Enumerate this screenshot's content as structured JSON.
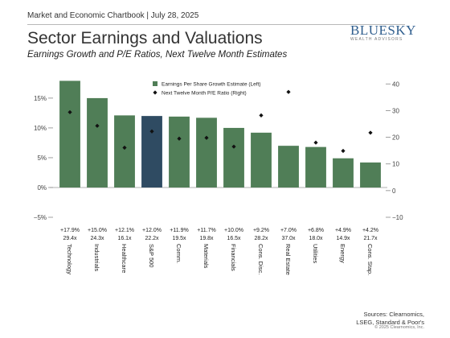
{
  "header": {
    "text": "Market and Economic Chartbook | July 28, 2025",
    "logo_main": "BLUESKY",
    "logo_sub": "WEALTH ADVISORS"
  },
  "title": "Sector Earnings and Valuations",
  "subtitle": "Earnings Growth and P/E Ratios, Next Twelve Month Estimates",
  "footer": {
    "sources_line1": "Sources: Clearnomics,",
    "sources_line2": "LSEG, Standard & Poor's",
    "copyright": "© 2025 Clearnomics, Inc."
  },
  "chart_data": {
    "type": "bar",
    "categories": [
      "Technology",
      "Industrials",
      "Healthcare",
      "S&P 500",
      "Comm.",
      "Materials",
      "Financials",
      "Cons. Disc.",
      "Real Estate",
      "Utilities",
      "Energy",
      "Cons. Stap."
    ],
    "series": [
      {
        "name": "Earnings Per Share Growth Estimate (Left)",
        "axis": "left",
        "type": "bar",
        "values": [
          17.9,
          15.0,
          12.1,
          12.0,
          11.9,
          11.7,
          10.0,
          9.2,
          7.0,
          6.8,
          4.9,
          4.2
        ],
        "labels": [
          "+17.9%",
          "+15.0%",
          "+12.1%",
          "+12.0%",
          "+11.9%",
          "+11.7%",
          "+10.0%",
          "+9.2%",
          "+7.0%",
          "+6.8%",
          "+4.9%",
          "+4.2%"
        ]
      },
      {
        "name": "Next Twelve Month P/E Ratio (Right)",
        "axis": "right",
        "type": "scatter",
        "values": [
          29.4,
          24.3,
          16.1,
          22.2,
          19.5,
          19.8,
          16.5,
          28.2,
          37.0,
          18.0,
          14.9,
          21.7
        ],
        "labels": [
          "29.4x",
          "24.3x",
          "16.1x",
          "22.2x",
          "19.5x",
          "19.8x",
          "16.5x",
          "28.2x",
          "37.0x",
          "18.0x",
          "14.9x",
          "21.7x"
        ]
      }
    ],
    "highlight_category": "S&P 500",
    "left_axis": {
      "ylim": [
        -5,
        18.5
      ],
      "ticks": [
        -5,
        0,
        5,
        10,
        15
      ],
      "tick_labels": [
        "−5%",
        "0%",
        "5%",
        "10%",
        "15%"
      ]
    },
    "right_axis": {
      "ylim": [
        -10,
        42.5
      ],
      "ticks": [
        -10,
        0,
        10,
        20,
        30,
        40
      ],
      "tick_labels": [
        "−10",
        "0",
        "10",
        "20",
        "30",
        "40"
      ]
    },
    "legend_position": "top-center",
    "colors": {
      "bar": "#507e57",
      "highlight": "#2f4b62",
      "marker": "#111111",
      "axis": "#888888",
      "zero_line": "#999999"
    },
    "grid": false
  }
}
